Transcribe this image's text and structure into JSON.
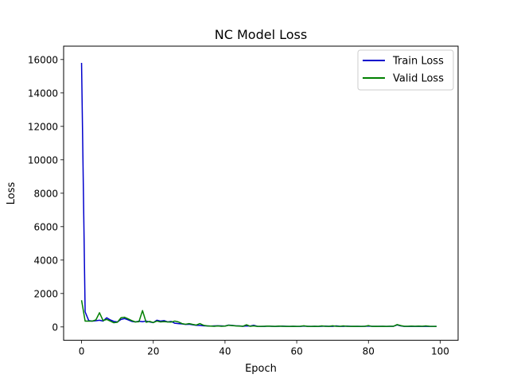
{
  "chart_data": {
    "type": "line",
    "title": "NC Model Loss",
    "xlabel": "Epoch",
    "ylabel": "Loss",
    "xlim": [
      -5,
      105
    ],
    "ylim": [
      -800,
      16800
    ],
    "xticks": [
      0,
      20,
      40,
      60,
      80,
      100
    ],
    "yticks": [
      0,
      2000,
      4000,
      6000,
      8000,
      10000,
      12000,
      14000,
      16000
    ],
    "grid": false,
    "legend_position": "top-right",
    "series": [
      {
        "name": "Train Loss",
        "color": "#0000cc",
        "x": [
          0,
          1,
          2,
          3,
          4,
          5,
          6,
          7,
          8,
          9,
          10,
          11,
          12,
          13,
          14,
          15,
          16,
          17,
          18,
          19,
          20,
          21,
          22,
          23,
          24,
          25,
          26,
          27,
          28,
          29,
          30,
          31,
          32,
          33,
          34,
          35,
          36,
          37,
          38,
          39,
          40,
          41,
          42,
          43,
          44,
          45,
          46,
          47,
          48,
          49,
          50,
          51,
          52,
          53,
          54,
          55,
          56,
          57,
          58,
          59,
          60,
          61,
          62,
          63,
          64,
          65,
          66,
          67,
          68,
          69,
          70,
          71,
          72,
          73,
          74,
          75,
          76,
          77,
          78,
          79,
          80,
          81,
          82,
          83,
          84,
          85,
          86,
          87,
          88,
          89,
          90,
          91,
          92,
          93,
          94,
          95,
          96,
          97,
          98,
          99
        ],
        "values": [
          15800,
          900,
          380,
          350,
          370,
          400,
          350,
          550,
          420,
          330,
          300,
          450,
          500,
          420,
          330,
          300,
          340,
          310,
          350,
          300,
          260,
          400,
          350,
          380,
          300,
          330,
          220,
          200,
          180,
          150,
          160,
          130,
          100,
          90,
          70,
          60,
          50,
          60,
          70,
          60,
          50,
          110,
          90,
          70,
          60,
          40,
          60,
          50,
          100,
          40,
          30,
          30,
          50,
          40,
          30,
          40,
          50,
          40,
          30,
          40,
          30,
          30,
          50,
          40,
          30,
          40,
          30,
          40,
          50,
          40,
          30,
          60,
          40,
          30,
          50,
          40,
          30,
          40,
          30,
          40,
          50,
          40,
          30,
          40,
          40,
          30,
          40,
          40,
          120,
          60,
          30,
          30,
          40,
          30,
          40,
          30,
          40,
          30,
          30,
          30
        ]
      },
      {
        "name": "Valid Loss",
        "color": "#008000",
        "x": [
          0,
          1,
          2,
          3,
          4,
          5,
          6,
          7,
          8,
          9,
          10,
          11,
          12,
          13,
          14,
          15,
          16,
          17,
          18,
          19,
          20,
          21,
          22,
          23,
          24,
          25,
          26,
          27,
          28,
          29,
          30,
          31,
          32,
          33,
          34,
          35,
          36,
          37,
          38,
          39,
          40,
          41,
          42,
          43,
          44,
          45,
          46,
          47,
          48,
          49,
          50,
          51,
          52,
          53,
          54,
          55,
          56,
          57,
          58,
          59,
          60,
          61,
          62,
          63,
          64,
          65,
          66,
          67,
          68,
          69,
          70,
          71,
          72,
          73,
          74,
          75,
          76,
          77,
          78,
          79,
          80,
          81,
          82,
          83,
          84,
          85,
          86,
          87,
          88,
          89,
          90,
          91,
          92,
          93,
          94,
          95,
          96,
          97,
          98,
          99
        ],
        "values": [
          1600,
          350,
          350,
          350,
          420,
          850,
          380,
          450,
          350,
          250,
          280,
          550,
          580,
          480,
          380,
          300,
          310,
          980,
          280,
          330,
          260,
          350,
          300,
          320,
          300,
          290,
          350,
          300,
          200,
          160,
          200,
          150,
          110,
          200,
          100,
          60,
          50,
          40,
          60,
          40,
          50,
          100,
          80,
          60,
          50,
          40,
          130,
          40,
          60,
          30,
          30,
          40,
          50,
          40,
          30,
          50,
          40,
          30,
          30,
          40,
          30,
          40,
          70,
          30,
          30,
          40,
          30,
          60,
          40,
          30,
          70,
          40,
          30,
          60,
          40,
          30,
          40,
          30,
          30,
          40,
          80,
          30,
          40,
          30,
          40,
          30,
          40,
          40,
          140,
          80,
          40,
          40,
          50,
          40,
          50,
          40,
          60,
          40,
          30,
          30
        ]
      }
    ]
  }
}
